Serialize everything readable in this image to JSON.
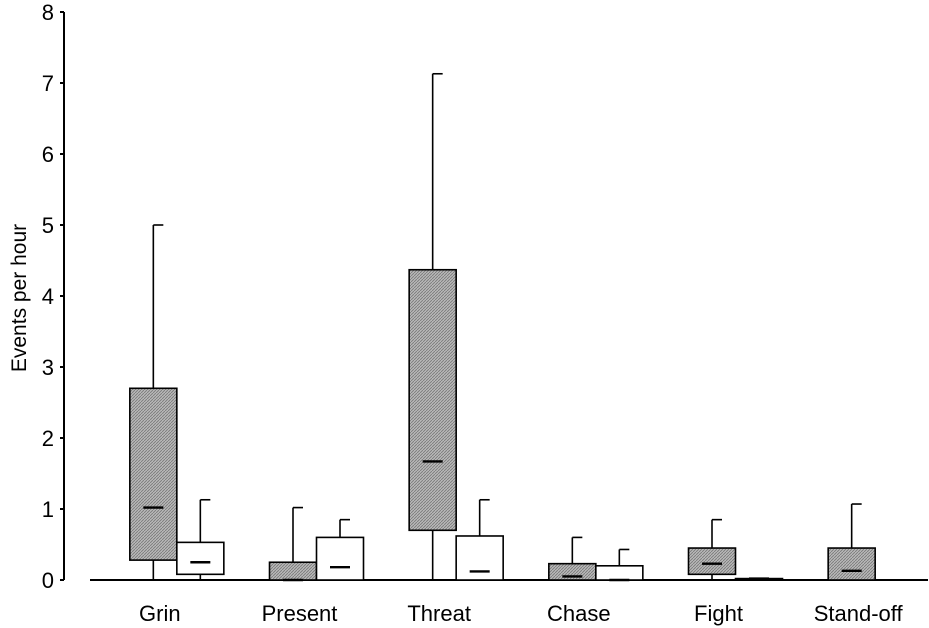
{
  "chart_data": {
    "type": "box",
    "ylabel": "Events per hour",
    "ylim": [
      0,
      8
    ],
    "yticks": [
      "0",
      "1",
      "2",
      "3",
      "4",
      "5",
      "6",
      "7",
      "8"
    ],
    "categories": [
      "Grin",
      "Present",
      "Threat",
      "Chase",
      "Fight",
      "Stand-off"
    ],
    "grid": false,
    "legend": "none",
    "series": [
      {
        "style": "hatched-gray",
        "boxes": [
          {
            "category": "Grin",
            "min": 0,
            "q1": 0.28,
            "median": 1.02,
            "q3": 2.7,
            "max": 5.0
          },
          {
            "category": "Present",
            "min": 0,
            "q1": 0,
            "median": 0,
            "q3": 0.25,
            "max": 1.02
          },
          {
            "category": "Threat",
            "min": 0,
            "q1": 0.7,
            "median": 1.67,
            "q3": 4.37,
            "max": 7.13
          },
          {
            "category": "Chase",
            "min": 0,
            "q1": 0,
            "median": 0.05,
            "q3": 0.23,
            "max": 0.6
          },
          {
            "category": "Fight",
            "min": 0,
            "q1": 0.08,
            "median": 0.23,
            "q3": 0.45,
            "max": 0.85
          },
          {
            "category": "Stand-off",
            "min": 0,
            "q1": 0,
            "median": 0.13,
            "q3": 0.45,
            "max": 1.07
          }
        ]
      },
      {
        "style": "white",
        "boxes": [
          {
            "category": "Grin",
            "min": 0,
            "q1": 0.08,
            "median": 0.25,
            "q3": 0.53,
            "max": 1.13
          },
          {
            "category": "Present",
            "min": 0,
            "q1": 0,
            "median": 0.18,
            "q3": 0.6,
            "max": 0.85
          },
          {
            "category": "Threat",
            "min": 0,
            "q1": 0,
            "median": 0.12,
            "q3": 0.62,
            "max": 1.13
          },
          {
            "category": "Chase",
            "min": 0,
            "q1": 0,
            "median": 0.0,
            "q3": 0.2,
            "max": 0.43
          },
          {
            "category": "Fight",
            "min": 0,
            "q1": 0,
            "median": 0.02,
            "q3": 0.02,
            "max": 0.02
          },
          {
            "category": "Stand-off",
            "min": 0,
            "q1": 0,
            "median": 0,
            "q3": 0,
            "max": 0
          }
        ]
      }
    ]
  }
}
